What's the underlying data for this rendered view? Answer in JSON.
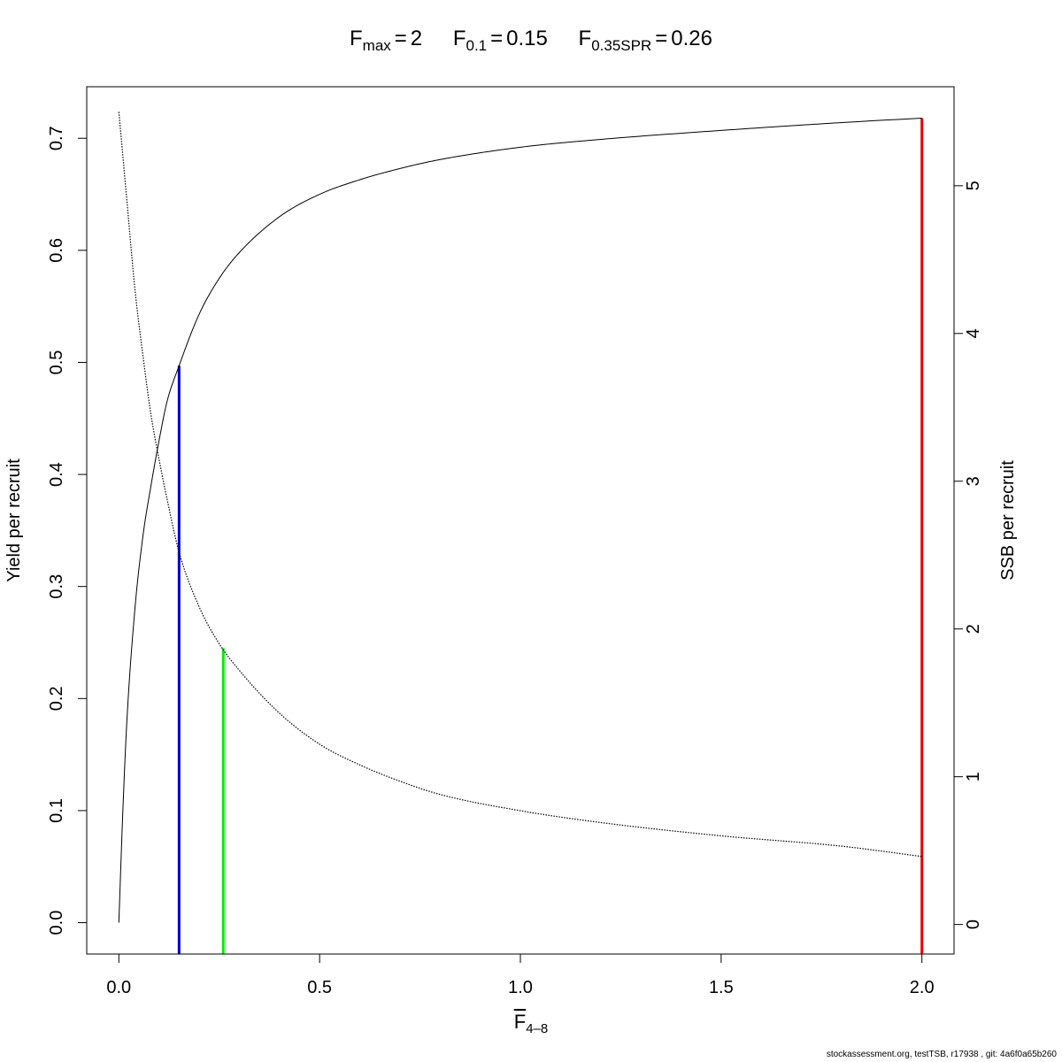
{
  "chart_data": {
    "type": "line",
    "title": {
      "fmax_symbol": "F",
      "fmax_sub": "max",
      "fmax_value": "2",
      "f01_symbol": "F",
      "f01_sub": "0.1",
      "f01_value": "0.15",
      "fspr_symbol": "F",
      "fspr_sub": "0.35SPR",
      "fspr_value": "0.26"
    },
    "xlabel": {
      "symbol": "F",
      "sub": "4–8"
    },
    "ylabel_left": "Yield per recruit",
    "ylabel_right": "SSB per recruit",
    "xlim": [
      -0.08,
      2.08
    ],
    "ylim_left": [
      -0.028,
      0.746
    ],
    "ylim_right": [
      -0.2,
      5.67
    ],
    "x_ticks": [
      0.0,
      0.5,
      1.0,
      1.5,
      2.0
    ],
    "x_tick_labels": [
      "0.0",
      "0.5",
      "1.0",
      "1.5",
      "2.0"
    ],
    "y_left_ticks": [
      0.0,
      0.1,
      0.2,
      0.3,
      0.4,
      0.5,
      0.6,
      0.7
    ],
    "y_left_tick_labels": [
      "0.0",
      "0.1",
      "0.2",
      "0.3",
      "0.4",
      "0.5",
      "0.6",
      "0.7"
    ],
    "y_right_ticks": [
      0,
      1,
      2,
      3,
      4,
      5
    ],
    "y_right_tick_labels": [
      "0",
      "1",
      "2",
      "3",
      "4",
      "5"
    ],
    "series": [
      {
        "axis": "left",
        "style": "solid",
        "color": "#000000",
        "x": [
          0.0,
          0.01,
          0.02,
          0.04,
          0.06,
          0.08,
          0.1,
          0.12,
          0.15,
          0.2,
          0.25,
          0.3,
          0.4,
          0.5,
          0.6,
          0.7,
          0.8,
          1.0,
          1.2,
          1.5,
          1.8,
          2.0
        ],
        "y": [
          0.0,
          0.1,
          0.18,
          0.28,
          0.345,
          0.39,
          0.43,
          0.465,
          0.497,
          0.543,
          0.575,
          0.598,
          0.63,
          0.65,
          0.663,
          0.673,
          0.681,
          0.692,
          0.699,
          0.707,
          0.714,
          0.718
        ]
      },
      {
        "axis": "right",
        "style": "dotted",
        "color": "#000000",
        "x": [
          0.0,
          0.02,
          0.04,
          0.06,
          0.08,
          0.1,
          0.12,
          0.15,
          0.2,
          0.25,
          0.3,
          0.4,
          0.5,
          0.6,
          0.7,
          0.8,
          1.0,
          1.2,
          1.5,
          1.8,
          2.0
        ],
        "y": [
          5.5,
          4.9,
          4.3,
          3.85,
          3.45,
          3.15,
          2.88,
          2.52,
          2.15,
          1.9,
          1.72,
          1.43,
          1.22,
          1.08,
          0.97,
          0.88,
          0.77,
          0.69,
          0.6,
          0.53,
          0.46
        ]
      }
    ],
    "reference_lines": [
      {
        "x": 0.15,
        "y_left": 0.497,
        "color": "#0000cc"
      },
      {
        "x": 0.26,
        "y_left": 0.245,
        "color": "#00ee00"
      },
      {
        "x": 2.0,
        "y_left": 0.718,
        "color": "#ee0000"
      }
    ]
  },
  "footer": "stockassessment.org, testTSB, r17938 , git: 4a6f0a65b260"
}
